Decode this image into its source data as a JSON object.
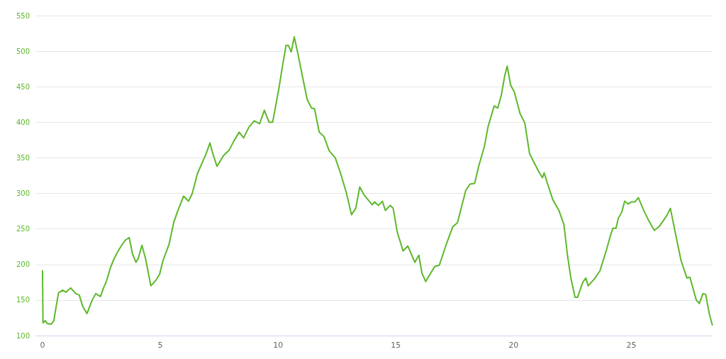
{
  "chart_data": {
    "type": "line",
    "color": "#5cb82a",
    "marker": "none",
    "line_style": "solid",
    "grid": "y",
    "x": [
      0,
      0.02,
      0.12,
      0.2,
      0.37,
      0.48,
      0.58,
      0.68,
      0.85,
      1.0,
      1.2,
      1.41,
      1.56,
      1.71,
      1.89,
      2.11,
      2.26,
      2.46,
      2.59,
      2.71,
      2.89,
      3.01,
      3.16,
      3.34,
      3.51,
      3.68,
      3.82,
      3.97,
      4.07,
      4.22,
      4.37,
      4.6,
      4.82,
      4.97,
      5.12,
      5.37,
      5.57,
      5.75,
      5.99,
      6.2,
      6.36,
      6.58,
      6.78,
      6.95,
      7.11,
      7.23,
      7.41,
      7.68,
      7.93,
      8.13,
      8.35,
      8.54,
      8.76,
      8.99,
      9.22,
      9.42,
      9.62,
      9.77,
      10.04,
      10.17,
      10.34,
      10.44,
      10.56,
      10.69,
      10.84,
      11.04,
      11.24,
      11.42,
      11.55,
      11.75,
      11.95,
      12.17,
      12.43,
      12.65,
      12.9,
      13.12,
      13.3,
      13.47,
      13.65,
      14.0,
      14.1,
      14.26,
      14.43,
      14.56,
      14.76,
      14.89,
      15.06,
      15.31,
      15.51,
      15.81,
      15.98,
      16.11,
      16.27,
      16.65,
      16.85,
      17.12,
      17.32,
      17.42,
      17.62,
      17.77,
      17.97,
      18.15,
      18.35,
      18.52,
      18.77,
      18.92,
      19.18,
      19.33,
      19.48,
      19.63,
      19.73,
      19.88,
      20.03,
      20.28,
      20.48,
      20.68,
      20.88,
      21.08,
      21.23,
      21.3,
      21.44,
      21.67,
      21.94,
      22.14,
      22.29,
      22.44,
      22.61,
      22.72,
      22.94,
      23.07,
      23.17,
      23.44,
      23.67,
      23.95,
      24.1,
      24.22,
      24.35,
      24.45,
      24.6,
      24.72,
      24.87,
      25.0,
      25.15,
      25.3,
      25.53,
      25.72,
      25.98,
      26.2,
      26.39,
      26.51,
      26.66,
      26.86,
      27.11,
      27.36,
      27.49,
      27.76,
      27.89,
      28.04,
      28.16,
      28.31,
      28.44
    ],
    "values": [
      191,
      118,
      121,
      117,
      116,
      121,
      141,
      160,
      164,
      161,
      167,
      159,
      157,
      141,
      131,
      150,
      159,
      155,
      167,
      176,
      196,
      206,
      216,
      226,
      234,
      238,
      215,
      203,
      209,
      227,
      209,
      170,
      178,
      186,
      206,
      228,
      259,
      276,
      296,
      289,
      300,
      328,
      343,
      356,
      371,
      356,
      338,
      353,
      361,
      374,
      386,
      378,
      393,
      402,
      398,
      417,
      400,
      400,
      448,
      475,
      508,
      508,
      499,
      520,
      497,
      464,
      432,
      420,
      419,
      386,
      380,
      360,
      350,
      329,
      301,
      270,
      279,
      309,
      298,
      284,
      288,
      283,
      289,
      276,
      283,
      279,
      246,
      219,
      226,
      203,
      213,
      188,
      176,
      197,
      199,
      226,
      244,
      253,
      259,
      278,
      304,
      313,
      314,
      338,
      367,
      394,
      423,
      420,
      438,
      466,
      479,
      452,
      443,
      412,
      399,
      356,
      343,
      330,
      322,
      329,
      314,
      291,
      275,
      256,
      213,
      180,
      154,
      154,
      175,
      181,
      170,
      180,
      191,
      221,
      239,
      251,
      251,
      265,
      274,
      289,
      285,
      288,
      288,
      294,
      276,
      263,
      248,
      254,
      263,
      269,
      279,
      246,
      206,
      181,
      182,
      150,
      145,
      159,
      158,
      131,
      115
    ],
    "xlim": [
      -0.3,
      28.45
    ],
    "xticks": [
      0,
      5,
      10,
      15,
      20,
      25
    ],
    "ylim": [
      100,
      550
    ],
    "yticks": [
      100,
      150,
      200,
      250,
      300,
      350,
      400,
      450,
      500,
      550
    ]
  }
}
